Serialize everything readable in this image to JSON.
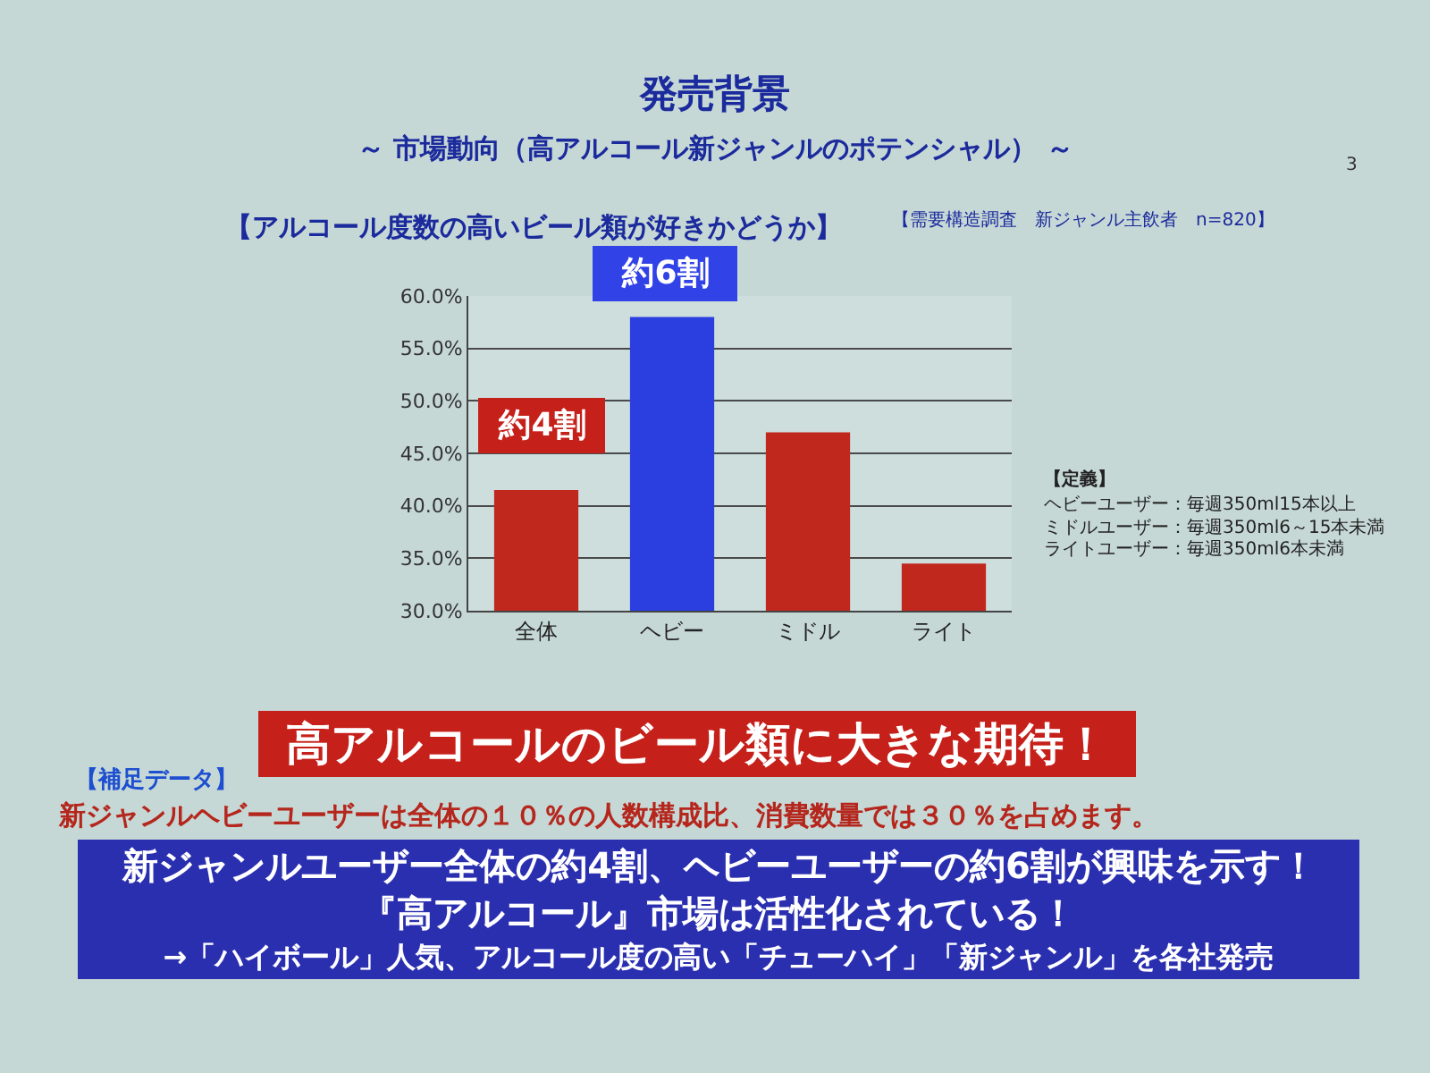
{
  "chart_data": {
    "type": "bar",
    "title": "発売背景",
    "subtitle": "～ 市場動向（高アルコール新ジャンルのポテンシャル） ～",
    "categories": [
      "全体",
      "ヘビー",
      "ミドル",
      "ライト"
    ],
    "values": [
      41.5,
      58.0,
      47.0,
      34.5
    ],
    "colors": [
      "#c0281e",
      "#2b3ee0",
      "#c0281e",
      "#c0281e"
    ],
    "ylim": [
      30,
      60
    ],
    "yticks": [
      {
        "value": 30,
        "label": "30.0%"
      },
      {
        "value": 35,
        "label": "35.0%"
      },
      {
        "value": 40,
        "label": "40.0%"
      },
      {
        "value": 45,
        "label": "45.0%"
      },
      {
        "value": 50,
        "label": "50.0%"
      },
      {
        "value": 55,
        "label": "55.0%"
      },
      {
        "value": 60,
        "label": "60.0%"
      }
    ],
    "grid": "y",
    "annotations": [
      "3",
      "【アルコール度数の高いビール類が好きかどうか】",
      "【需要構造調査　新ジャンル主飲者　n=820】",
      "【定義】",
      "ヘビーユーザー：毎週350ml15本以上",
      "ミドルユーザー：毎週350ml6～15本未満",
      "ライトユーザー：毎週350ml6本未満",
      "高アルコールのビール類に大きな期待！",
      "【補足データ】",
      "新ジャンルヘビーユーザーは全体の１０％の人数構成比、消費数量では３０％を占めます。",
      "新ジャンルユーザー全体の約4割、ヘビーユーザーの約6割が興味を示す！",
      "『高アルコール』市場は活性化されている！",
      "→「ハイボール」人気、アルコール度の高い「チューハイ」「新ジャンル」を各社発売",
      "約6割",
      "約4割"
    ]
  }
}
